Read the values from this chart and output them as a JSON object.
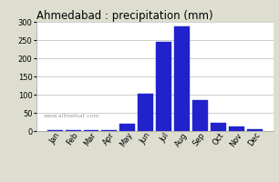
{
  "title": "Ahmedabad : precipitation (mm)",
  "months": [
    "Jan",
    "Feb",
    "Mar",
    "Apr",
    "May",
    "Jun",
    "Jul",
    "Aug",
    "Sep",
    "Oct",
    "Nov",
    "Dec"
  ],
  "values": [
    2,
    2,
    2,
    2,
    20,
    103,
    245,
    287,
    85,
    22,
    13,
    5
  ],
  "bar_color": "#2222cc",
  "ylim": [
    0,
    300
  ],
  "yticks": [
    0,
    50,
    100,
    150,
    200,
    250,
    300
  ],
  "background_color": "#deded0",
  "plot_bg_color": "#ffffff",
  "grid_color": "#bbbbbb",
  "title_fontsize": 8.5,
  "tick_fontsize": 6,
  "watermark": "www.allmetsat.com",
  "watermark_fontsize": 4.5
}
